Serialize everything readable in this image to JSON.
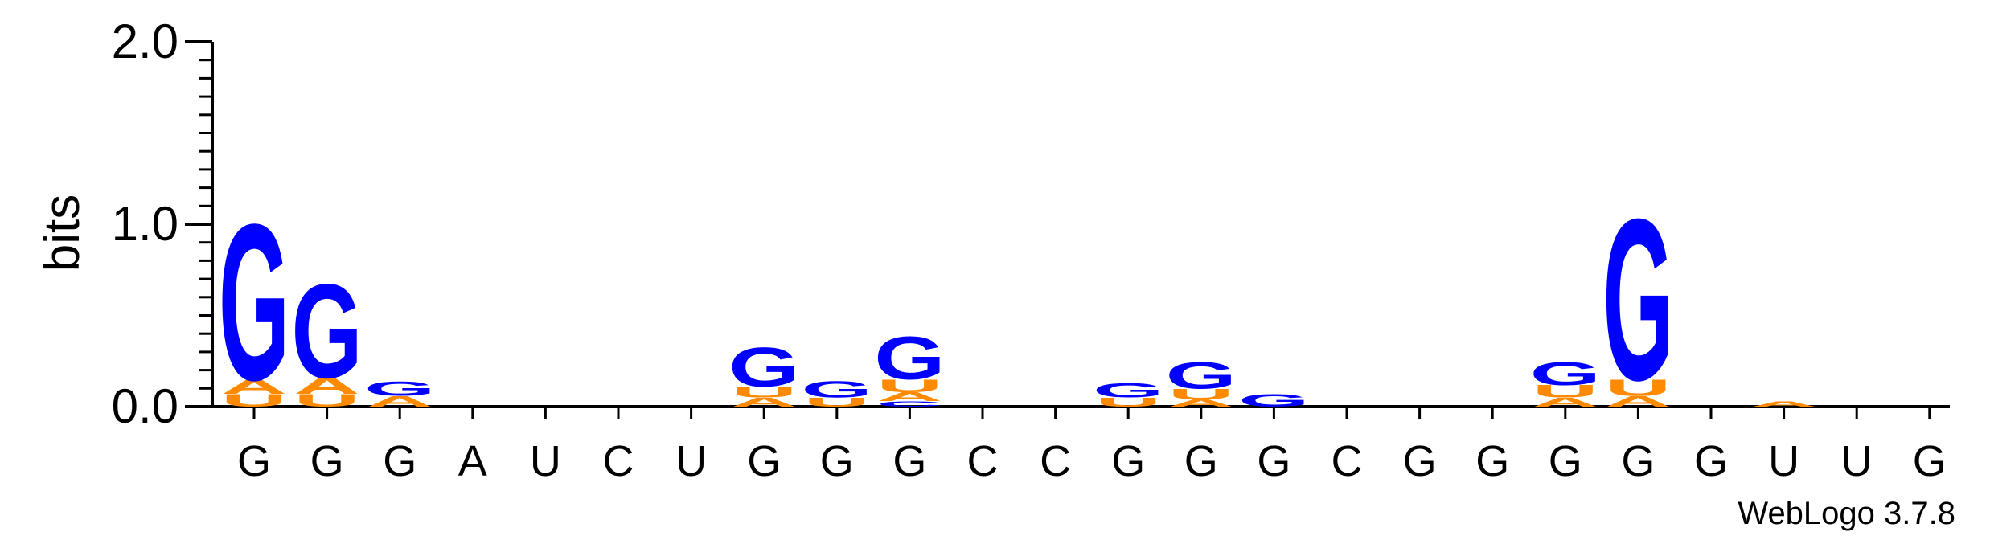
{
  "chart_data": {
    "type": "sequence-logo",
    "ylabel": "bits",
    "ylim": [
      0,
      2.0
    ],
    "yticks": [
      "0.0",
      "1.0",
      "2.0"
    ],
    "footer": "WebLogo 3.7.8",
    "colors": {
      "G": "#0000ff",
      "A": "#ff8a00",
      "U": "#ff8a00",
      "C": "#0000ff"
    },
    "positions": [
      {
        "label": "G",
        "stack": [
          {
            "letter": "U",
            "h": 0.07
          },
          {
            "letter": "A",
            "h": 0.08
          },
          {
            "letter": "G",
            "h": 0.88
          }
        ]
      },
      {
        "label": "G",
        "stack": [
          {
            "letter": "U",
            "h": 0.07
          },
          {
            "letter": "A",
            "h": 0.09
          },
          {
            "letter": "G",
            "h": 0.53
          }
        ]
      },
      {
        "label": "G",
        "stack": [
          {
            "letter": "A",
            "h": 0.06
          },
          {
            "letter": "G",
            "h": 0.08
          }
        ]
      },
      {
        "label": "A",
        "stack": []
      },
      {
        "label": "U",
        "stack": []
      },
      {
        "label": "C",
        "stack": []
      },
      {
        "label": "U",
        "stack": []
      },
      {
        "label": "G",
        "stack": [
          {
            "letter": "A",
            "h": 0.05
          },
          {
            "letter": "U",
            "h": 0.06
          },
          {
            "letter": "G",
            "h": 0.22
          }
        ]
      },
      {
        "label": "G",
        "stack": [
          {
            "letter": "U",
            "h": 0.05
          },
          {
            "letter": "G",
            "h": 0.09
          }
        ]
      },
      {
        "label": "G",
        "stack": [
          {
            "letter": "C",
            "h": 0.03
          },
          {
            "letter": "A",
            "h": 0.05
          },
          {
            "letter": "U",
            "h": 0.07
          },
          {
            "letter": "G",
            "h": 0.24
          }
        ]
      },
      {
        "label": "C",
        "stack": []
      },
      {
        "label": "C",
        "stack": []
      },
      {
        "label": "G",
        "stack": [
          {
            "letter": "U",
            "h": 0.05
          },
          {
            "letter": "G",
            "h": 0.08
          }
        ]
      },
      {
        "label": "G",
        "stack": [
          {
            "letter": "A",
            "h": 0.04
          },
          {
            "letter": "U",
            "h": 0.06
          },
          {
            "letter": "G",
            "h": 0.15
          }
        ]
      },
      {
        "label": "G",
        "stack": [
          {
            "letter": "G",
            "h": 0.07
          }
        ]
      },
      {
        "label": "C",
        "stack": []
      },
      {
        "label": "G",
        "stack": []
      },
      {
        "label": "G",
        "stack": []
      },
      {
        "label": "G",
        "stack": [
          {
            "letter": "A",
            "h": 0.05
          },
          {
            "letter": "U",
            "h": 0.07
          },
          {
            "letter": "G",
            "h": 0.13
          }
        ]
      },
      {
        "label": "G",
        "stack": [
          {
            "letter": "A",
            "h": 0.06
          },
          {
            "letter": "U",
            "h": 0.09
          },
          {
            "letter": "G",
            "h": 0.91
          }
        ]
      },
      {
        "label": "G",
        "stack": []
      },
      {
        "label": "U",
        "stack": [
          {
            "letter": "A",
            "h": 0.03
          }
        ]
      },
      {
        "label": "U",
        "stack": []
      },
      {
        "label": "G",
        "stack": []
      }
    ]
  }
}
